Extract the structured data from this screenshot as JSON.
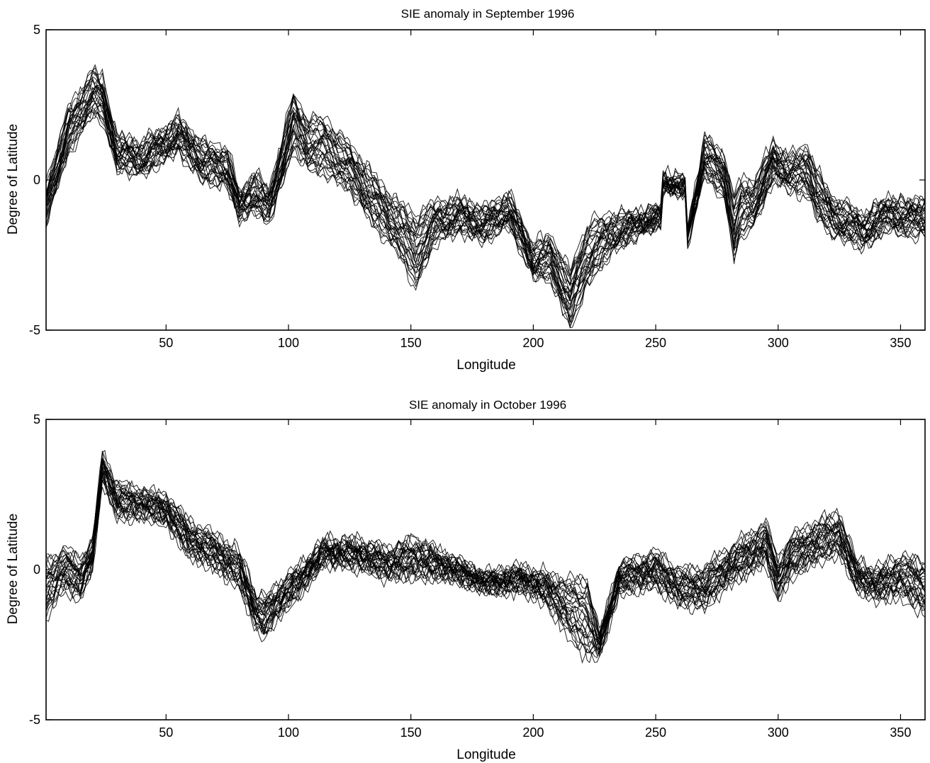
{
  "chart_data": [
    {
      "type": "line",
      "title": "SIE anomaly in September 1996",
      "xlabel": "Longitude",
      "ylabel": "Degree of Latitude",
      "xlim": [
        1,
        360
      ],
      "ylim": [
        -5,
        5
      ],
      "x_ticks": [
        50,
        100,
        150,
        200,
        250,
        300,
        350
      ],
      "y_ticks": [
        -5,
        0,
        5
      ],
      "y_tick_labels": [
        "-5",
        "0",
        "5"
      ],
      "grid": false,
      "line_color": "#000000",
      "ensemble_members": 30,
      "x": [
        1,
        10,
        20,
        24,
        30,
        40,
        55,
        65,
        75,
        80,
        86,
        92,
        102,
        108,
        115,
        125,
        135,
        145,
        152,
        160,
        170,
        180,
        190,
        200,
        207,
        215,
        222,
        232,
        245,
        252,
        253,
        260,
        262,
        263,
        270,
        278,
        282,
        285,
        290,
        298,
        305,
        312,
        316,
        322,
        335,
        345,
        352,
        360
      ],
      "series_mean": [
        -0.8,
        1.6,
        2.9,
        2.7,
        0.9,
        0.7,
        1.5,
        0.6,
        0.4,
        -0.9,
        -0.4,
        -0.9,
        1.9,
        1.2,
        1.1,
        0.4,
        -0.7,
        -1.6,
        -2.4,
        -1.4,
        -1.2,
        -1.5,
        -1.0,
        -2.7,
        -2.6,
        -4.0,
        -2.5,
        -1.8,
        -1.4,
        -1.2,
        -0.1,
        -0.2,
        -0.3,
        -1.9,
        0.8,
        0.1,
        -1.6,
        -0.9,
        -0.8,
        0.6,
        0.2,
        0.3,
        -0.5,
        -1.2,
        -1.7,
        -1.1,
        -1.3,
        -1.2
      ],
      "series_spread": [
        0.6,
        0.7,
        0.7,
        0.7,
        0.5,
        0.5,
        0.5,
        0.6,
        0.6,
        0.4,
        0.6,
        0.5,
        0.9,
        0.8,
        0.9,
        0.7,
        0.8,
        0.8,
        1.2,
        0.6,
        0.5,
        0.5,
        0.5,
        0.5,
        0.7,
        0.9,
        1.0,
        0.6,
        0.3,
        0.3,
        0.2,
        0.2,
        0.2,
        0.2,
        0.6,
        0.7,
        1.0,
        0.9,
        0.7,
        0.6,
        0.5,
        0.8,
        0.7,
        0.6,
        0.5,
        0.5,
        0.5,
        0.6
      ]
    },
    {
      "type": "line",
      "title": "SIE anomaly in October 1996",
      "xlabel": "Longitude",
      "ylabel": "Degree of Latitude",
      "xlim": [
        1,
        360
      ],
      "ylim": [
        -5,
        5
      ],
      "x_ticks": [
        50,
        100,
        150,
        200,
        250,
        300,
        350
      ],
      "y_ticks": [
        -5,
        0,
        5
      ],
      "y_tick_labels": [
        "-5",
        "0",
        "5"
      ],
      "grid": false,
      "line_color": "#000000",
      "ensemble_members": 30,
      "x": [
        1,
        8,
        15,
        20,
        24,
        30,
        40,
        50,
        60,
        70,
        80,
        87,
        90,
        95,
        105,
        115,
        130,
        140,
        152,
        165,
        180,
        185,
        195,
        205,
        215,
        222,
        227,
        235,
        250,
        260,
        270,
        280,
        295,
        300,
        305,
        315,
        325,
        332,
        340,
        350,
        360
      ],
      "series_mean": [
        -0.6,
        0.0,
        -0.3,
        0.5,
        3.4,
        2.3,
        2.2,
        2.0,
        1.0,
        0.6,
        0.0,
        -1.4,
        -1.6,
        -1.1,
        -0.3,
        0.6,
        0.5,
        0.2,
        0.4,
        0.1,
        -0.4,
        -0.4,
        -0.3,
        -0.6,
        -1.3,
        -1.6,
        -2.5,
        -0.3,
        0.0,
        -0.6,
        -0.6,
        0.1,
        0.9,
        -0.3,
        0.4,
        0.9,
        1.2,
        -0.2,
        -0.5,
        -0.2,
        -0.6
      ],
      "series_spread": [
        0.9,
        0.6,
        0.6,
        0.4,
        0.4,
        0.5,
        0.4,
        0.4,
        0.5,
        0.5,
        0.5,
        0.5,
        0.6,
        0.5,
        0.4,
        0.3,
        0.4,
        0.4,
        0.6,
        0.3,
        0.2,
        0.3,
        0.3,
        0.4,
        0.9,
        1.3,
        0.3,
        0.4,
        0.5,
        0.5,
        0.6,
        0.5,
        0.6,
        0.6,
        0.6,
        0.6,
        0.6,
        0.4,
        0.4,
        0.6,
        0.8
      ]
    }
  ]
}
